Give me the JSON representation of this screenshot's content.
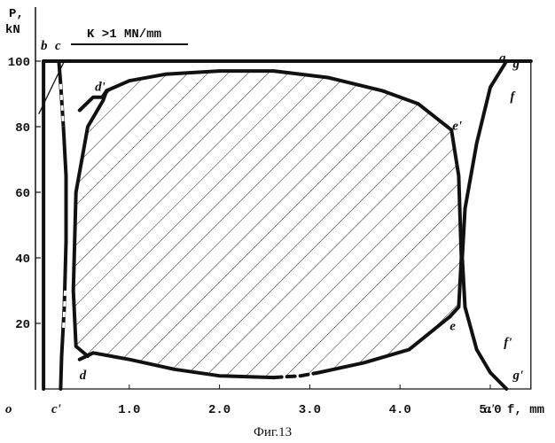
{
  "chart_data": {
    "type": "line",
    "title": "",
    "caption": "Фиг.13",
    "ylabel_line1": "P,",
    "ylabel_line2": "kN",
    "xlabel": "f, mm",
    "annotation": "K >1 MN/mm",
    "origin_label": "o",
    "xlim": [
      0,
      5.6
    ],
    "ylim": [
      0,
      100
    ],
    "xticks": [
      "1.0",
      "2.0",
      "3.0",
      "4.0",
      "5.0"
    ],
    "xtick_values": [
      1.0,
      2.0,
      3.0,
      4.0,
      5.0
    ],
    "yticks": [
      "20",
      "40",
      "60",
      "80",
      "100"
    ],
    "ytick_values": [
      20,
      40,
      60,
      80,
      100
    ],
    "point_labels": [
      {
        "text": "b",
        "x": 0.03,
        "y": 100
      },
      {
        "text": "c",
        "x": 0.25,
        "y": 100
      },
      {
        "text": "d'",
        "x": 0.62,
        "y": 91
      },
      {
        "text": "a",
        "x": 5.45,
        "y": 100
      },
      {
        "text": "g",
        "x": 5.25,
        "y": 98
      },
      {
        "text": "e'",
        "x": 4.58,
        "y": 79
      },
      {
        "text": "f",
        "x": 5.22,
        "y": 88
      },
      {
        "text": "e",
        "x": 4.55,
        "y": 18
      },
      {
        "text": "f'",
        "x": 5.15,
        "y": 13
      },
      {
        "text": "d",
        "x": 0.45,
        "y": 3
      },
      {
        "text": "c'",
        "x": 0.25,
        "y": -3
      },
      {
        "text": "g'",
        "x": 5.25,
        "y": 3
      },
      {
        "text": "a'",
        "x": 5.45,
        "y": -3
      }
    ],
    "series": [
      {
        "id": "b-vertical",
        "style": "thick",
        "x": [
          0.05,
          0.05
        ],
        "y": [
          0,
          100
        ]
      },
      {
        "id": "c-c-prime",
        "style": "thick",
        "x": [
          0.22,
          0.24,
          0.27,
          0.3,
          0.3,
          0.28,
          0.25,
          0.24
        ],
        "y": [
          100,
          93,
          80,
          65,
          45,
          25,
          10,
          0
        ]
      },
      {
        "id": "d-d-prime",
        "style": "thick",
        "x": [
          0.54,
          0.41,
          0.38,
          0.41,
          0.54,
          0.71,
          0.75,
          0.7,
          0.6,
          0.45
        ],
        "y": [
          10,
          13,
          30,
          60,
          80,
          88,
          91,
          89,
          89,
          85
        ]
      },
      {
        "id": "top-d-prime-e-prime",
        "style": "thick",
        "x": [
          0.75,
          1.0,
          1.4,
          2.0,
          2.6,
          3.2,
          3.8,
          4.2,
          4.57
        ],
        "y": [
          91,
          94,
          96,
          97,
          97,
          95,
          91,
          87,
          79
        ]
      },
      {
        "id": "e-prime-e",
        "style": "thick",
        "x": [
          4.57,
          4.65,
          4.68,
          4.65,
          4.55
        ],
        "y": [
          79,
          65,
          40,
          25,
          22
        ]
      },
      {
        "id": "bottom-d-e",
        "style": "thick",
        "x": [
          0.45,
          0.6,
          1.0,
          1.5,
          2.0,
          2.6
        ],
        "y": [
          9,
          11,
          9,
          6,
          4,
          3.5
        ]
      },
      {
        "id": "bottom-dashed",
        "style": "dashed",
        "x": [
          2.6,
          2.9,
          3.1
        ],
        "y": [
          3.5,
          4,
          5
        ]
      },
      {
        "id": "bottom-e",
        "style": "thick",
        "x": [
          3.1,
          3.6,
          4.1,
          4.55
        ],
        "y": [
          5,
          8,
          12,
          22
        ]
      },
      {
        "id": "g-g-prime",
        "style": "thick",
        "x": [
          5.18,
          5.0,
          4.85,
          4.72,
          4.69,
          4.72,
          4.85,
          5.0,
          5.18
        ],
        "y": [
          100,
          92,
          75,
          55,
          40,
          25,
          12,
          5,
          0
        ]
      },
      {
        "id": "b-a-top",
        "style": "thick",
        "x": [
          0.05,
          5.45
        ],
        "y": [
          100,
          100
        ]
      },
      {
        "id": "a-a-prime",
        "style": "thin",
        "x": [
          5.45,
          5.45
        ],
        "y": [
          100,
          0
        ]
      },
      {
        "id": "bottom-baseline",
        "style": "thin",
        "x": [
          0.05,
          5.45
        ],
        "y": [
          0,
          0
        ]
      },
      {
        "id": "thin-diagonal",
        "style": "thin",
        "x": [
          0.0,
          0.28
        ],
        "y": [
          84,
          100
        ]
      }
    ],
    "hatched_region": "area enclosed by d-d'-e'-e",
    "grid": false,
    "legend": "none"
  }
}
